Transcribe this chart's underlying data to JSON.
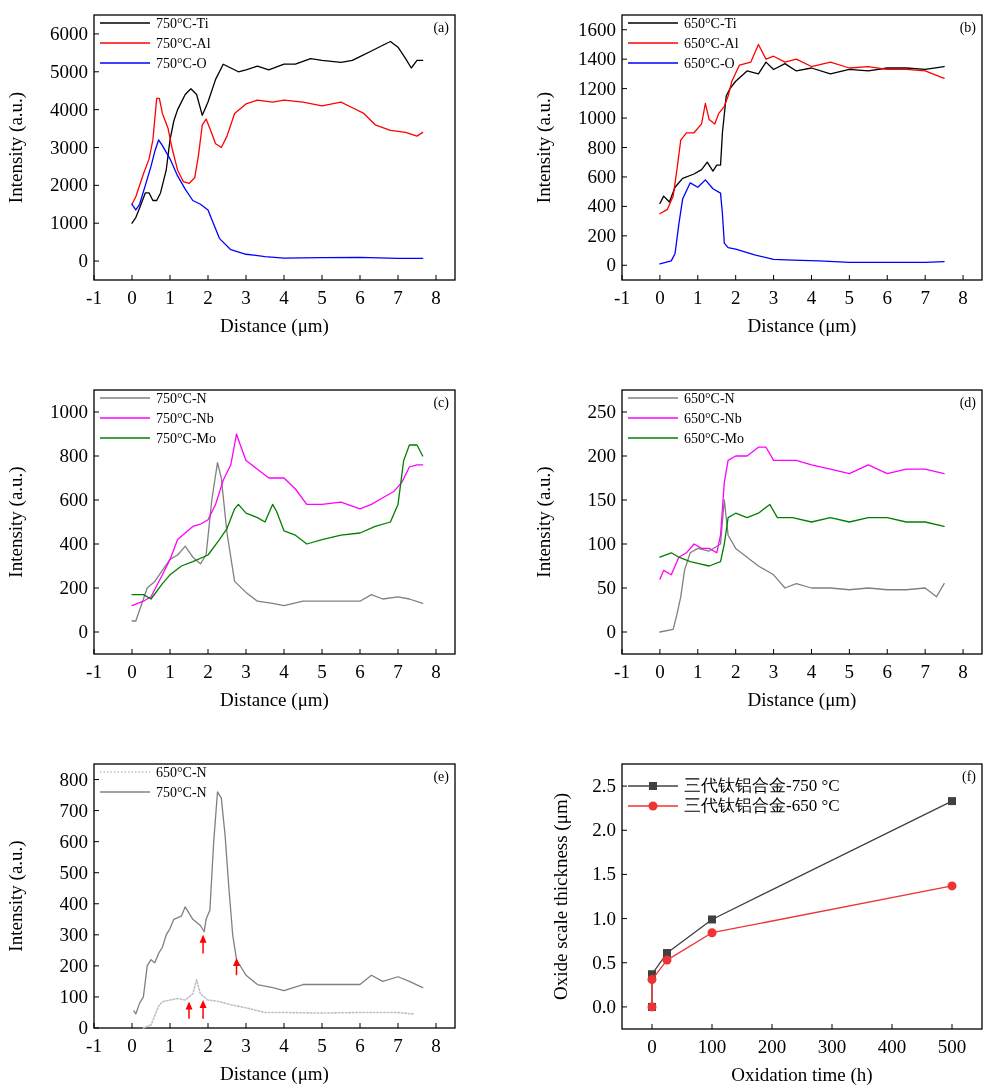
{
  "chart_data": [
    {
      "type": "line",
      "xlabel": "Distance (μm)",
      "ylabel": "Intensity (a.u.)",
      "annotations": [
        "(a)"
      ],
      "legend": "top left",
      "xlim": [
        -1,
        8.5
      ],
      "ylim": [
        -500,
        6500
      ],
      "xticks": [
        -1,
        0,
        1,
        2,
        3,
        4,
        5,
        6,
        7,
        8
      ],
      "yticks": [
        0,
        1000,
        2000,
        3000,
        4000,
        5000,
        6000
      ],
      "series": [
        {
          "name": "750°C-Ti",
          "color": "#000000",
          "x": [
            0,
            0.1,
            0.2,
            0.35,
            0.45,
            0.55,
            0.65,
            0.75,
            0.9,
            1.0,
            1.1,
            1.2,
            1.4,
            1.55,
            1.7,
            1.85,
            2.0,
            2.2,
            2.4,
            2.6,
            2.8,
            3.0,
            3.3,
            3.6,
            4.0,
            4.3,
            4.7,
            5.0,
            5.5,
            5.8,
            6.0,
            6.3,
            6.6,
            6.8,
            7.0,
            7.2,
            7.35,
            7.5,
            7.65
          ],
          "values": [
            1000,
            1150,
            1400,
            1800,
            1800,
            1600,
            1600,
            1800,
            2400,
            3200,
            3700,
            4000,
            4400,
            4550,
            4400,
            3850,
            4200,
            4800,
            5200,
            5100,
            5000,
            5050,
            5150,
            5050,
            5200,
            5200,
            5350,
            5300,
            5250,
            5300,
            5400,
            5550,
            5700,
            5800,
            5650,
            5350,
            5100,
            5300,
            5300
          ]
        },
        {
          "name": "750°C-Al",
          "color": "#ff0000",
          "x": [
            0,
            0.1,
            0.3,
            0.45,
            0.55,
            0.65,
            0.72,
            0.8,
            0.95,
            1.05,
            1.2,
            1.35,
            1.5,
            1.65,
            1.75,
            1.85,
            1.95,
            2.05,
            2.2,
            2.35,
            2.5,
            2.7,
            3.0,
            3.3,
            3.7,
            4.0,
            4.5,
            5.0,
            5.5,
            5.8,
            6.1,
            6.4,
            6.8,
            7.2,
            7.5,
            7.65
          ],
          "values": [
            1500,
            1700,
            2300,
            2700,
            3200,
            4300,
            4300,
            3900,
            3500,
            3000,
            2400,
            2100,
            2050,
            2200,
            2800,
            3600,
            3750,
            3500,
            3100,
            3000,
            3300,
            3900,
            4150,
            4250,
            4200,
            4250,
            4200,
            4100,
            4200,
            4050,
            3900,
            3600,
            3450,
            3400,
            3300,
            3400
          ]
        },
        {
          "name": "750°C-O",
          "color": "#0000ff",
          "x": [
            0,
            0.1,
            0.2,
            0.35,
            0.5,
            0.6,
            0.7,
            0.8,
            1.0,
            1.2,
            1.4,
            1.6,
            1.8,
            2.0,
            2.1,
            2.3,
            2.6,
            3.0,
            3.5,
            4.0,
            5.0,
            6.0,
            7.0,
            7.65
          ],
          "values": [
            1500,
            1350,
            1500,
            2000,
            2500,
            2900,
            3200,
            3050,
            2700,
            2250,
            1900,
            1600,
            1500,
            1350,
            1100,
            600,
            300,
            180,
            120,
            80,
            90,
            100,
            70,
            70
          ]
        }
      ]
    },
    {
      "type": "line",
      "xlabel": "Distance (μm)",
      "ylabel": "Intensity (a.u.)",
      "annotations": [
        "(b)"
      ],
      "legend": "top left",
      "xlim": [
        -1,
        8.5
      ],
      "ylim": [
        -100,
        1700
      ],
      "xticks": [
        -1,
        0,
        1,
        2,
        3,
        4,
        5,
        6,
        7,
        8
      ],
      "yticks": [
        0,
        200,
        400,
        600,
        800,
        1000,
        1200,
        1400,
        1600
      ],
      "series": [
        {
          "name": "650°C-Ti",
          "color": "#000000",
          "x": [
            0,
            0.1,
            0.25,
            0.4,
            0.6,
            0.9,
            1.1,
            1.25,
            1.4,
            1.5,
            1.6,
            1.65,
            1.75,
            1.85,
            2.0,
            2.3,
            2.6,
            2.8,
            3.0,
            3.3,
            3.6,
            4.0,
            4.5,
            5.0,
            5.5,
            6.0,
            6.5,
            7.0,
            7.5
          ],
          "values": [
            420,
            470,
            430,
            530,
            590,
            620,
            650,
            700,
            640,
            680,
            680,
            900,
            1150,
            1200,
            1250,
            1320,
            1300,
            1380,
            1330,
            1370,
            1320,
            1340,
            1300,
            1330,
            1320,
            1340,
            1340,
            1330,
            1350
          ]
        },
        {
          "name": "650°C-Al",
          "color": "#ff0000",
          "x": [
            0,
            0.2,
            0.35,
            0.45,
            0.55,
            0.7,
            0.9,
            1.1,
            1.2,
            1.3,
            1.45,
            1.55,
            1.7,
            1.8,
            1.9,
            2.1,
            2.4,
            2.6,
            2.8,
            3.0,
            3.3,
            3.6,
            4.0,
            4.5,
            5.0,
            5.5,
            6.0,
            6.5,
            7.0,
            7.5
          ],
          "values": [
            350,
            380,
            470,
            650,
            850,
            900,
            900,
            960,
            1100,
            990,
            960,
            1030,
            1080,
            1150,
            1250,
            1360,
            1380,
            1500,
            1400,
            1420,
            1380,
            1400,
            1350,
            1380,
            1340,
            1350,
            1330,
            1330,
            1320,
            1270
          ]
        },
        {
          "name": "650°C-O",
          "color": "#0000ff",
          "x": [
            0,
            0.3,
            0.4,
            0.5,
            0.6,
            0.8,
            1.0,
            1.2,
            1.4,
            1.6,
            1.65,
            1.7,
            1.8,
            2.0,
            2.5,
            3.0,
            3.5,
            4.2,
            5.0,
            6.0,
            7.0,
            7.5
          ],
          "values": [
            10,
            30,
            80,
            280,
            450,
            560,
            530,
            580,
            520,
            490,
            350,
            150,
            120,
            110,
            70,
            40,
            35,
            30,
            20,
            20,
            20,
            25
          ]
        }
      ]
    },
    {
      "type": "line",
      "xlabel": "Distance (μm)",
      "ylabel": "Intensity (a.u.)",
      "annotations": [
        "(c)"
      ],
      "legend": "top left",
      "xlim": [
        -1,
        8.5
      ],
      "ylim": [
        -100,
        1100
      ],
      "xticks": [
        -1,
        0,
        1,
        2,
        3,
        4,
        5,
        6,
        7,
        8
      ],
      "yticks": [
        0,
        200,
        400,
        600,
        800,
        1000
      ],
      "series": [
        {
          "name": "750°C-N",
          "color": "#808080",
          "x": [
            0,
            0.1,
            0.2,
            0.4,
            0.6,
            0.8,
            1.0,
            1.2,
            1.4,
            1.6,
            1.8,
            1.95,
            2.1,
            2.25,
            2.35,
            2.5,
            2.7,
            3.0,
            3.3,
            3.7,
            4.0,
            4.5,
            5.0,
            5.5,
            6.0,
            6.3,
            6.6,
            7.0,
            7.3,
            7.65
          ],
          "values": [
            50,
            50,
            100,
            200,
            230,
            280,
            330,
            350,
            390,
            340,
            310,
            350,
            600,
            770,
            700,
            450,
            230,
            180,
            140,
            130,
            120,
            140,
            140,
            140,
            140,
            170,
            150,
            160,
            150,
            130
          ]
        },
        {
          "name": "750°C-Nb",
          "color": "#ff00ff",
          "x": [
            0,
            0.3,
            0.5,
            0.8,
            1.0,
            1.2,
            1.4,
            1.6,
            1.8,
            2.0,
            2.2,
            2.4,
            2.6,
            2.75,
            2.85,
            3.0,
            3.3,
            3.6,
            4.0,
            4.3,
            4.6,
            5.0,
            5.5,
            6.0,
            6.3,
            6.6,
            6.9,
            7.1,
            7.3,
            7.5,
            7.65
          ],
          "values": [
            120,
            140,
            160,
            260,
            330,
            420,
            450,
            480,
            490,
            510,
            580,
            690,
            760,
            900,
            850,
            780,
            740,
            700,
            700,
            650,
            580,
            580,
            590,
            560,
            580,
            610,
            640,
            680,
            750,
            760,
            760
          ]
        },
        {
          "name": "750°C-Mo",
          "color": "#008000",
          "x": [
            0,
            0.3,
            0.5,
            0.8,
            1.0,
            1.3,
            1.6,
            2.0,
            2.3,
            2.5,
            2.7,
            2.8,
            3.0,
            3.3,
            3.5,
            3.7,
            3.8,
            4.0,
            4.3,
            4.6,
            5.0,
            5.5,
            6.0,
            6.4,
            6.8,
            7.0,
            7.15,
            7.3,
            7.5,
            7.65
          ],
          "values": [
            170,
            170,
            150,
            220,
            260,
            300,
            320,
            350,
            420,
            470,
            560,
            580,
            540,
            520,
            500,
            580,
            550,
            460,
            440,
            400,
            420,
            440,
            450,
            480,
            500,
            580,
            780,
            850,
            850,
            800
          ]
        }
      ]
    },
    {
      "type": "line",
      "xlabel": "Distance (μm)",
      "ylabel": "Intensity (a.u.)",
      "annotations": [
        "(d)"
      ],
      "legend": "top left",
      "xlim": [
        -1,
        8.5
      ],
      "ylim": [
        -25,
        275
      ],
      "xticks": [
        -1,
        0,
        1,
        2,
        3,
        4,
        5,
        6,
        7,
        8
      ],
      "yticks": [
        0,
        50,
        100,
        150,
        200,
        250
      ],
      "series": [
        {
          "name": "650°C-N",
          "color": "#808080",
          "x": [
            0,
            0.35,
            0.45,
            0.55,
            0.65,
            0.8,
            1.0,
            1.3,
            1.6,
            1.7,
            1.8,
            2.0,
            2.3,
            2.6,
            3.0,
            3.3,
            3.6,
            4.0,
            4.5,
            5.0,
            5.5,
            6.0,
            6.5,
            7.0,
            7.3,
            7.5
          ],
          "values": [
            0,
            3,
            20,
            40,
            70,
            90,
            95,
            92,
            100,
            150,
            110,
            95,
            85,
            75,
            65,
            50,
            55,
            50,
            50,
            48,
            50,
            48,
            48,
            50,
            40,
            55
          ]
        },
        {
          "name": "650°C-Nb",
          "color": "#ff00ff",
          "x": [
            0,
            0.1,
            0.3,
            0.5,
            0.7,
            0.9,
            1.1,
            1.3,
            1.5,
            1.6,
            1.7,
            1.8,
            2.0,
            2.3,
            2.6,
            2.8,
            3.0,
            3.3,
            3.6,
            4.0,
            4.5,
            5.0,
            5.5,
            6.0,
            6.5,
            7.0,
            7.5
          ],
          "values": [
            60,
            70,
            65,
            85,
            90,
            100,
            95,
            95,
            90,
            110,
            170,
            195,
            200,
            200,
            210,
            210,
            195,
            195,
            195,
            190,
            185,
            180,
            190,
            180,
            185,
            185,
            180
          ]
        },
        {
          "name": "650°C-Mo",
          "color": "#008000",
          "x": [
            0,
            0.3,
            0.5,
            0.8,
            1.0,
            1.3,
            1.6,
            1.7,
            1.8,
            2.0,
            2.3,
            2.6,
            2.9,
            3.1,
            3.5,
            4.0,
            4.5,
            5.0,
            5.5,
            6.0,
            6.5,
            7.0,
            7.5
          ],
          "values": [
            85,
            90,
            85,
            80,
            78,
            75,
            80,
            100,
            130,
            135,
            130,
            135,
            145,
            130,
            130,
            125,
            130,
            125,
            130,
            130,
            125,
            125,
            120
          ]
        }
      ]
    },
    {
      "type": "line",
      "xlabel": "Distance (μm)",
      "ylabel": "Intensity (a.u.)",
      "annotations": [
        "(e)"
      ],
      "legend": "top left",
      "xlim": [
        -1,
        8.5
      ],
      "ylim": [
        0,
        850
      ],
      "xticks": [
        -1,
        0,
        1,
        2,
        3,
        4,
        5,
        6,
        7,
        8
      ],
      "yticks": [
        0,
        100,
        200,
        300,
        400,
        500,
        600,
        700,
        800
      ],
      "series": [
        {
          "name": "650°C-N",
          "color": "#c0c0c0",
          "line_style": "dotted",
          "x": [
            0.3,
            0.5,
            0.6,
            0.7,
            0.8,
            1.0,
            1.2,
            1.4,
            1.6,
            1.7,
            1.8,
            2.0,
            2.3,
            2.6,
            3.0,
            3.5,
            4.0,
            5.0,
            6.0,
            7.0,
            7.4
          ],
          "values": [
            0,
            10,
            40,
            70,
            85,
            90,
            95,
            90,
            110,
            155,
            110,
            90,
            85,
            75,
            65,
            50,
            50,
            48,
            50,
            50,
            45
          ]
        },
        {
          "name": "750°C-N",
          "color": "#808080",
          "x": [
            0.05,
            0.1,
            0.2,
            0.3,
            0.4,
            0.5,
            0.6,
            0.7,
            0.8,
            0.9,
            1.0,
            1.1,
            1.3,
            1.4,
            1.5,
            1.6,
            1.8,
            1.9,
            1.95,
            2.05,
            2.15,
            2.25,
            2.35,
            2.45,
            2.55,
            2.65,
            2.75,
            2.9,
            3.0,
            3.3,
            3.7,
            4.0,
            4.5,
            5.0,
            5.5,
            6.0,
            6.3,
            6.6,
            7.0,
            7.3,
            7.65
          ],
          "values": [
            55,
            45,
            80,
            100,
            200,
            220,
            210,
            240,
            260,
            300,
            320,
            350,
            360,
            390,
            370,
            350,
            330,
            310,
            350,
            380,
            600,
            760,
            740,
            620,
            450,
            300,
            220,
            190,
            170,
            140,
            130,
            120,
            140,
            140,
            140,
            140,
            170,
            150,
            165,
            150,
            130
          ]
        }
      ]
    },
    {
      "type": "line",
      "xlabel": "Oxidation time (h)",
      "ylabel": "Oxide scale thickness (μm)",
      "annotations": [
        "(f)"
      ],
      "legend": "top left",
      "xlim": [
        -50,
        550
      ],
      "ylim": [
        -0.25,
        2.75
      ],
      "xticks": [
        0,
        100,
        200,
        300,
        400,
        500
      ],
      "yticks": [
        {
          "value": 0,
          "label": "0.0"
        },
        {
          "value": 0.5,
          "label": "0.5"
        },
        {
          "value": 1,
          "label": "1.0"
        },
        {
          "value": 1.5,
          "label": "1.5"
        },
        {
          "value": 2,
          "label": "2.0"
        },
        {
          "value": 2.5,
          "label": "2.5"
        }
      ],
      "series": [
        {
          "name": "三代钛铝合金-750 °C",
          "color": "#404040",
          "marker": "square",
          "x": [
            0,
            0,
            25,
            100,
            500
          ],
          "values": [
            0,
            0.37,
            0.61,
            0.99,
            2.33
          ]
        },
        {
          "name": "三代钛铝合金-650 °C",
          "color": "#ee3333",
          "marker": "circle",
          "x": [
            0,
            0,
            25,
            100,
            500
          ],
          "values": [
            0,
            0.31,
            0.53,
            0.84,
            1.37
          ]
        }
      ]
    }
  ]
}
